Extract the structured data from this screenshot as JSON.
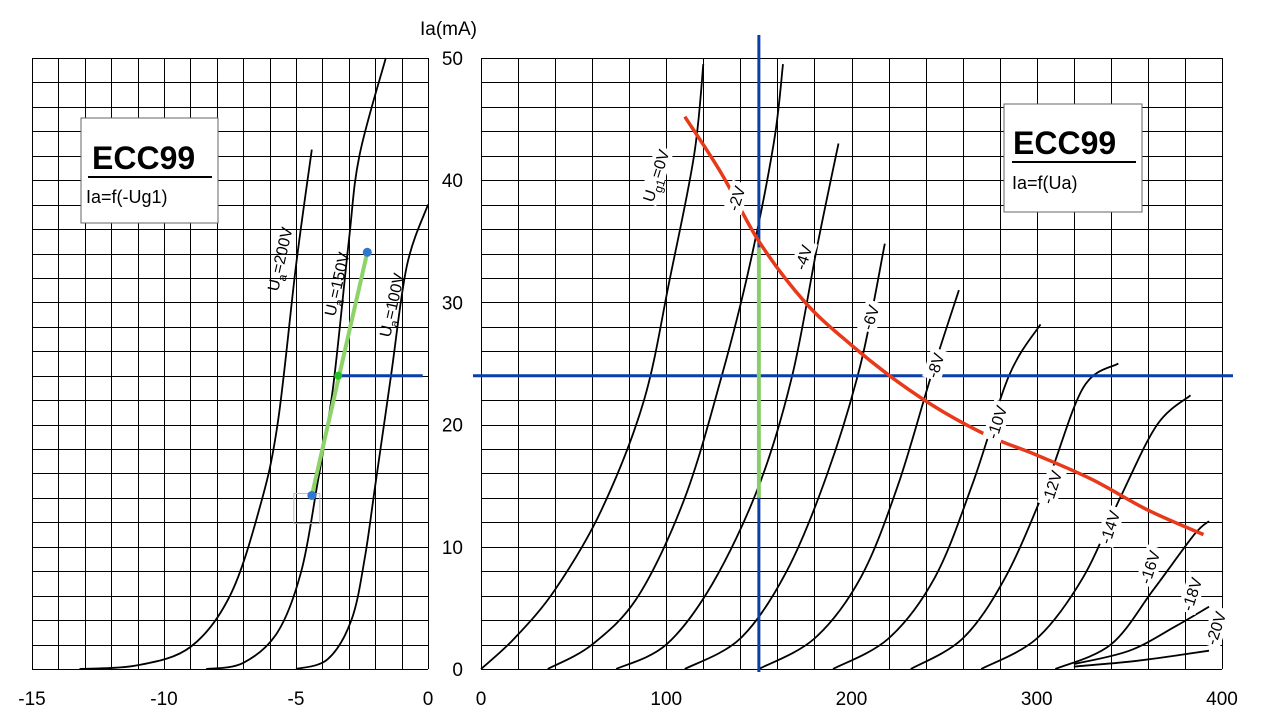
{
  "colors": {
    "grid": "#000000",
    "curve": "#000000",
    "load_line": "#e8391a",
    "operating_line": "#0b3ea8",
    "transfer_line": "#8dd36a",
    "point_blue": "#2f78d0",
    "point_green": "#1fc21f"
  },
  "y_axis_title": "Ia(mA)",
  "chart_data": [
    {
      "type": "line",
      "title": "ECC99",
      "subtitle": "Ia=f(-Ug1)",
      "xlabel": "",
      "ylabel": "Ia(mA)",
      "xlim": [
        -15,
        0
      ],
      "ylim": [
        0,
        50
      ],
      "x_ticks": [
        -15,
        -10,
        -5,
        0
      ],
      "x_tick_labels": [
        "-15",
        "-10",
        "-5",
        "0"
      ],
      "grid": true,
      "series": [
        {
          "name": "Ua=200V",
          "points": [
            [
              -13.2,
              0
            ],
            [
              -11,
              0.3
            ],
            [
              -9,
              1.8
            ],
            [
              -7.5,
              6
            ],
            [
              -6.4,
              13
            ],
            [
              -5.7,
              20
            ],
            [
              -5.0,
              33
            ],
            [
              -4.4,
              42.5
            ]
          ]
        },
        {
          "name": "Ua=150V",
          "points": [
            [
              -8.4,
              0
            ],
            [
              -7,
              0.5
            ],
            [
              -5.7,
              3
            ],
            [
              -4.8,
              8
            ],
            [
              -4.2,
              15
            ],
            [
              -3.6,
              23
            ],
            [
              -3.0,
              35
            ],
            [
              -2.6,
              42
            ],
            [
              -1.6,
              50
            ]
          ]
        },
        {
          "name": "Ua=100V",
          "points": [
            [
              -5.0,
              0
            ],
            [
              -3.8,
              0.8
            ],
            [
              -2.9,
              4
            ],
            [
              -2.4,
              9
            ],
            [
              -2.0,
              15
            ],
            [
              -1.4,
              24
            ],
            [
              -0.8,
              33
            ],
            [
              0,
              38
            ]
          ]
        }
      ],
      "transfer_line": [
        [
          -4.4,
          14.2
        ],
        [
          -2.3,
          34.1
        ]
      ],
      "operating_point": {
        "x": -3.4,
        "y": 24
      },
      "operating_line": {
        "x_from": -3.4,
        "x_to": -0.2,
        "y": 24
      }
    },
    {
      "type": "line",
      "title": "ECC99",
      "subtitle": "Ia=f(Ua)",
      "xlabel": "",
      "ylabel": "Ia(mA)",
      "xlim": [
        0,
        400
      ],
      "ylim": [
        0,
        50
      ],
      "x_ticks": [
        0,
        100,
        200,
        300,
        400
      ],
      "x_tick_labels": [
        "0",
        "100",
        "200",
        "300",
        "400"
      ],
      "y_ticks": [
        0,
        10,
        20,
        30,
        40,
        50
      ],
      "y_tick_labels": [
        "0",
        "10",
        "20",
        "30",
        "40",
        "50"
      ],
      "grid": true,
      "series": [
        {
          "name": "Ug1=0V",
          "label": "Ug1=0V",
          "points": [
            [
              0,
              0
            ],
            [
              18,
              2.5
            ],
            [
              40,
              6.5
            ],
            [
              65,
              13
            ],
            [
              88,
              22
            ],
            [
              102,
              32
            ],
            [
              115,
              42
            ],
            [
              120,
              49.5
            ]
          ]
        },
        {
          "name": "-2V",
          "label": "-2V",
          "points": [
            [
              36,
              0
            ],
            [
              60,
              2
            ],
            [
              85,
              6
            ],
            [
              110,
              14
            ],
            [
              130,
              24
            ],
            [
              145,
              33
            ],
            [
              158,
              43
            ],
            [
              163,
              49.5
            ]
          ]
        },
        {
          "name": "-4V",
          "label": "-4V",
          "points": [
            [
              73,
              0
            ],
            [
              100,
              2
            ],
            [
              125,
              7
            ],
            [
              150,
              15
            ],
            [
              168,
              24
            ],
            [
              182,
              35
            ],
            [
              193,
              43
            ]
          ]
        },
        {
          "name": "-6V",
          "label": "-6V",
          "points": [
            [
              110,
              0
            ],
            [
              140,
              2.5
            ],
            [
              165,
              8
            ],
            [
              187,
              16
            ],
            [
              205,
              25
            ],
            [
              218,
              34.8
            ]
          ]
        },
        {
          "name": "-8V",
          "label": "-8V",
          "points": [
            [
              150,
              0
            ],
            [
              180,
              2.5
            ],
            [
              205,
              7.5
            ],
            [
              225,
              15
            ],
            [
              243,
              24
            ],
            [
              258,
              31
            ]
          ]
        },
        {
          "name": "-10V",
          "label": "-10V",
          "points": [
            [
              190,
              0
            ],
            [
              220,
              2.5
            ],
            [
              245,
              7.5
            ],
            [
              265,
              15
            ],
            [
              285,
              24
            ],
            [
              302,
              28.2
            ]
          ]
        },
        {
          "name": "-12V",
          "label": "-12V",
          "points": [
            [
              232,
              0
            ],
            [
              260,
              2.5
            ],
            [
              283,
              7.5
            ],
            [
              305,
              15
            ],
            [
              325,
              23
            ],
            [
              344,
              25
            ]
          ]
        },
        {
          "name": "-14V",
          "label": "-14V",
          "points": [
            [
              270,
              0
            ],
            [
              300,
              2.5
            ],
            [
              325,
              7.5
            ],
            [
              345,
              14
            ],
            [
              365,
              20
            ],
            [
              383,
              22.4
            ]
          ]
        },
        {
          "name": "-16V",
          "label": "-16V",
          "points": [
            [
              310,
              0
            ],
            [
              340,
              2
            ],
            [
              363,
              6.5
            ],
            [
              385,
              11
            ],
            [
              393,
              12.1
            ]
          ]
        },
        {
          "name": "-18V",
          "label": "-18V",
          "points": [
            [
              320,
              0.4
            ],
            [
              350,
              1.5
            ],
            [
              375,
              3.5
            ],
            [
              393,
              5.1
            ]
          ]
        },
        {
          "name": "-20V",
          "label": "-20V",
          "points": [
            [
              320,
              0.2
            ],
            [
              350,
              0.6
            ],
            [
              375,
              1.1
            ],
            [
              393,
              1.5
            ]
          ]
        }
      ],
      "load_line": [
        [
          110,
          45.2
        ],
        [
          130,
          40.5
        ],
        [
          150,
          35
        ],
        [
          175,
          30
        ],
        [
          200,
          26.5
        ],
        [
          225,
          23.5
        ],
        [
          250,
          21
        ],
        [
          275,
          19
        ],
        [
          300,
          17.5
        ],
        [
          330,
          15.5
        ],
        [
          360,
          13
        ],
        [
          390,
          11
        ]
      ],
      "operating_vertical_x": 150,
      "operating_horizontal_y": 24,
      "transfer_vertical": {
        "x": 150,
        "y_from": 14,
        "y_to": 34.5
      }
    }
  ]
}
